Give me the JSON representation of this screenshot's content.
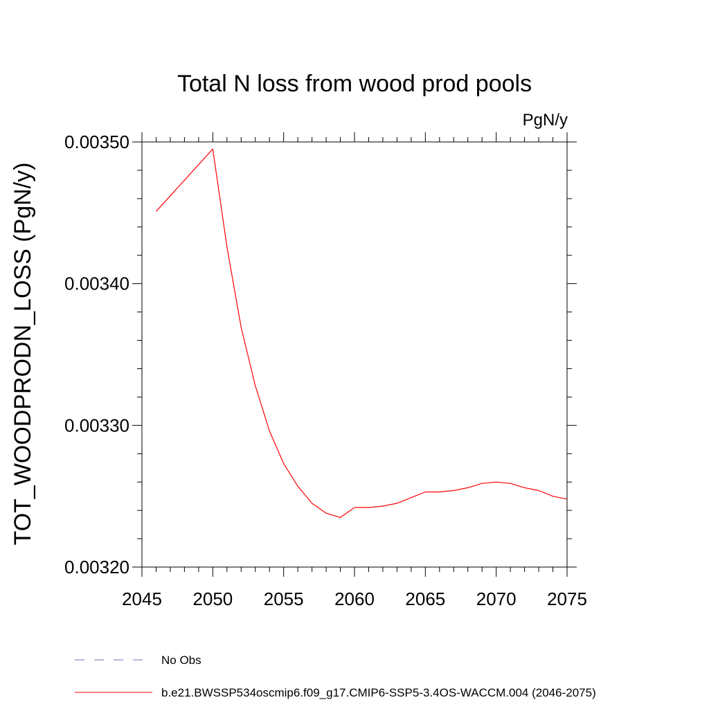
{
  "chart_data": {
    "type": "line",
    "title": "Total N loss from wood prod pools",
    "units_label": "PgN/y",
    "ylabel": "TOT_WOODPRODN_LOSS  (PgN/y)",
    "xlabel": "",
    "xlim": [
      2045,
      2075
    ],
    "ylim": [
      0.0032,
      0.0035
    ],
    "x_ticks": [
      "2045",
      "2050",
      "2055",
      "2060",
      "2065",
      "2070",
      "2075"
    ],
    "x_tick_values": [
      2045,
      2050,
      2055,
      2060,
      2065,
      2070,
      2075
    ],
    "y_ticks": [
      "0.00320",
      "0.00330",
      "0.00340",
      "0.00350"
    ],
    "y_tick_values": [
      0.0032,
      0.0033,
      0.0034,
      0.0035
    ],
    "y_minor_step": 2e-05,
    "grid": false,
    "legend_position": "bottom",
    "series": [
      {
        "name": "No Obs",
        "color": "#7a6fb0",
        "style": "dashed",
        "x": [],
        "y": []
      },
      {
        "name": "b.e21.BWSSP534oscmip6.f09_g17.CMIP6-SSP5-3.4OS-WACCM.004 (2046-2075)",
        "color": "#ff0000",
        "style": "solid",
        "x": [
          2046,
          2047,
          2048,
          2049,
          2050,
          2051,
          2052,
          2053,
          2054,
          2055,
          2056,
          2057,
          2058,
          2059,
          2060,
          2061,
          2062,
          2063,
          2064,
          2065,
          2066,
          2067,
          2068,
          2069,
          2070,
          2071,
          2072,
          2073,
          2074,
          2075
        ],
        "y": [
          0.003451,
          0.003462,
          0.003473,
          0.003484,
          0.003495,
          0.003426,
          0.003369,
          0.003328,
          0.003296,
          0.003273,
          0.003257,
          0.003245,
          0.003238,
          0.003235,
          0.003242,
          0.003242,
          0.003243,
          0.003245,
          0.003249,
          0.003253,
          0.003253,
          0.003254,
          0.003256,
          0.003259,
          0.00326,
          0.003259,
          0.003256,
          0.003254,
          0.00325,
          0.003248
        ]
      }
    ]
  }
}
